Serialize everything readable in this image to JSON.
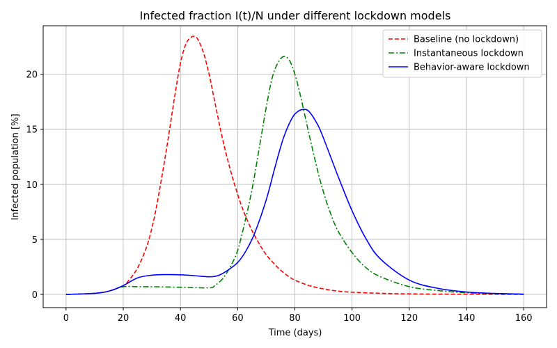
{
  "chart_data": {
    "type": "line",
    "title": "Infected fraction I(t)/N under different lockdown models",
    "xlabel": "Time (days)",
    "ylabel": "Infected population [%]",
    "xlim": [
      -8,
      168
    ],
    "ylim": [
      -1.2,
      24.4
    ],
    "xticks": [
      0,
      20,
      40,
      60,
      80,
      100,
      120,
      140,
      160
    ],
    "yticks": [
      0,
      5,
      10,
      15,
      20
    ],
    "grid": true,
    "legend_position": "top-right",
    "series": [
      {
        "name": "Baseline (no lockdown)",
        "color": "#ff0000",
        "dash": "dashed",
        "x": [
          0,
          10,
          15,
          20,
          22,
          25,
          28,
          30,
          32,
          35,
          38,
          40,
          42,
          44,
          45,
          46,
          48,
          50,
          52,
          55,
          58,
          60,
          62,
          65,
          68,
          70,
          72,
          75,
          78,
          80,
          85,
          90,
          95,
          100,
          110,
          120,
          130,
          140,
          160
        ],
        "y": [
          0.0,
          0.1,
          0.3,
          0.8,
          1.3,
          2.4,
          4.2,
          6.0,
          8.5,
          13.0,
          18.0,
          21.0,
          22.8,
          23.4,
          23.4,
          23.2,
          22.0,
          20.0,
          17.5,
          13.8,
          10.8,
          9.1,
          7.6,
          5.8,
          4.4,
          3.6,
          3.0,
          2.2,
          1.6,
          1.3,
          0.8,
          0.5,
          0.3,
          0.2,
          0.1,
          0.05,
          0.03,
          0.02,
          0.0
        ]
      },
      {
        "name": "Instantaneous lockdown",
        "color": "#008000",
        "dash": "dashdot",
        "x": [
          0,
          10,
          15,
          20,
          25,
          30,
          40,
          50,
          52,
          55,
          58,
          60,
          62,
          65,
          68,
          70,
          72,
          74,
          76,
          78,
          80,
          82,
          85,
          88,
          90,
          92,
          95,
          100,
          105,
          110,
          120,
          130,
          140,
          150,
          160
        ],
        "y": [
          0.0,
          0.1,
          0.3,
          0.7,
          0.7,
          0.7,
          0.65,
          0.6,
          0.8,
          1.5,
          2.8,
          4.0,
          6.0,
          9.5,
          14.0,
          17.0,
          19.6,
          21.0,
          21.6,
          21.3,
          20.0,
          18.0,
          14.5,
          11.2,
          9.3,
          7.7,
          5.8,
          3.8,
          2.4,
          1.6,
          0.7,
          0.35,
          0.15,
          0.07,
          0.03
        ]
      },
      {
        "name": "Behavior-aware lockdown",
        "color": "#0000ff",
        "dash": "solid",
        "x": [
          0,
          10,
          15,
          20,
          25,
          30,
          35,
          40,
          45,
          50,
          53,
          56,
          60,
          63,
          66,
          70,
          73,
          76,
          79,
          81,
          83,
          85,
          88,
          90,
          95,
          100,
          105,
          110,
          120,
          130,
          140,
          150,
          160
        ],
        "y": [
          0.0,
          0.1,
          0.3,
          0.8,
          1.5,
          1.75,
          1.8,
          1.78,
          1.7,
          1.6,
          1.7,
          2.1,
          2.9,
          4.0,
          5.6,
          8.6,
          11.5,
          14.2,
          16.0,
          16.6,
          16.8,
          16.6,
          15.4,
          14.2,
          10.8,
          7.6,
          5.0,
          3.2,
          1.3,
          0.55,
          0.22,
          0.09,
          0.03
        ]
      }
    ]
  }
}
